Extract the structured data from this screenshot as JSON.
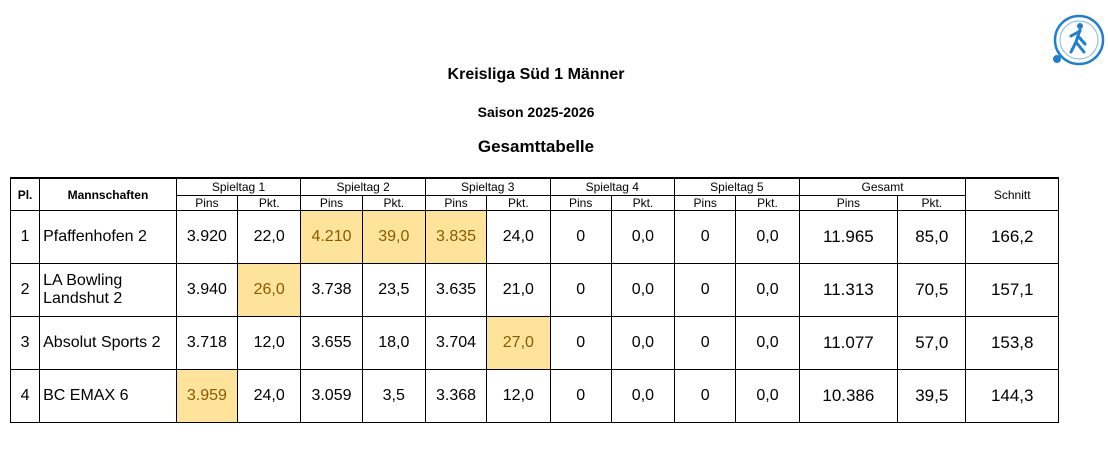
{
  "header": {
    "league": "Kreisliga Süd 1 Männer",
    "season": "Saison 2025-2026",
    "table_title": "Gesamttabelle"
  },
  "logo": {
    "icon": "bowling-federation-logo",
    "color": "#1e7fd1"
  },
  "highlight_color": "#fde49a",
  "table": {
    "col_place": "Pl.",
    "col_team": "Mannschaften",
    "matchdays": [
      "Spieltag 1",
      "Spieltag 2",
      "Spieltag 3",
      "Spieltag 4",
      "Spieltag 5"
    ],
    "col_total": "Gesamt",
    "col_avg": "Schnitt",
    "sub_pins": "Pins",
    "sub_pkt": "Pkt.",
    "rows": [
      {
        "place": "1",
        "team": "Pfaffenhofen 2",
        "days": [
          {
            "pins": "3.920",
            "pkt": "22,0"
          },
          {
            "pins": "4.210",
            "pkt": "39,0"
          },
          {
            "pins": "3.835",
            "pkt": "24,0"
          },
          {
            "pins": "0",
            "pkt": "0,0"
          },
          {
            "pins": "0",
            "pkt": "0,0"
          }
        ],
        "total_pins": "11.965",
        "total_pkt": "85,0",
        "avg": "166,2"
      },
      {
        "place": "2",
        "team": "LA Bowling Landshut 2",
        "days": [
          {
            "pins": "3.940",
            "pkt": "26,0"
          },
          {
            "pins": "3.738",
            "pkt": "23,5"
          },
          {
            "pins": "3.635",
            "pkt": "21,0"
          },
          {
            "pins": "0",
            "pkt": "0,0"
          },
          {
            "pins": "0",
            "pkt": "0,0"
          }
        ],
        "total_pins": "11.313",
        "total_pkt": "70,5",
        "avg": "157,1"
      },
      {
        "place": "3",
        "team": "Absolut Sports 2",
        "days": [
          {
            "pins": "3.718",
            "pkt": "12,0"
          },
          {
            "pins": "3.655",
            "pkt": "18,0"
          },
          {
            "pins": "3.704",
            "pkt": "27,0"
          },
          {
            "pins": "0",
            "pkt": "0,0"
          },
          {
            "pins": "0",
            "pkt": "0,0"
          }
        ],
        "total_pins": "11.077",
        "total_pkt": "57,0",
        "avg": "153,8"
      },
      {
        "place": "4",
        "team": "BC EMAX 6",
        "days": [
          {
            "pins": "3.959",
            "pkt": "24,0"
          },
          {
            "pins": "3.059",
            "pkt": "3,5"
          },
          {
            "pins": "3.368",
            "pkt": "12,0"
          },
          {
            "pins": "0",
            "pkt": "0,0"
          },
          {
            "pins": "0",
            "pkt": "0,0"
          }
        ],
        "total_pins": "10.386",
        "total_pkt": "39,5",
        "avg": "144,3"
      }
    ],
    "highlighted_cells": [
      {
        "row": 0,
        "day": 1,
        "field": "pins"
      },
      {
        "row": 0,
        "day": 1,
        "field": "pkt"
      },
      {
        "row": 0,
        "day": 2,
        "field": "pins"
      },
      {
        "row": 1,
        "day": 0,
        "field": "pkt"
      },
      {
        "row": 2,
        "day": 2,
        "field": "pkt"
      },
      {
        "row": 3,
        "day": 0,
        "field": "pins"
      }
    ]
  }
}
